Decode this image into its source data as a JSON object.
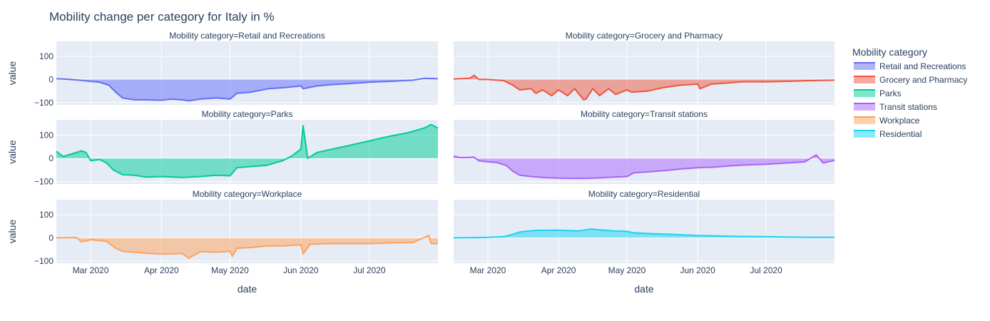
{
  "chart_data": {
    "type": "area",
    "title": "Mobility change per category for Italy in %",
    "xlabel": "date",
    "ylabel": "value",
    "x_range": [
      "2020-02-15",
      "2020-07-31"
    ],
    "y_range": [
      -110,
      165
    ],
    "y_ticks": [
      -100,
      0,
      100
    ],
    "x_ticks": [
      {
        "date": "2020-03-01",
        "label": "Mar 2020"
      },
      {
        "date": "2020-04-01",
        "label": "Apr 2020"
      },
      {
        "date": "2020-05-01",
        "label": "May 2020"
      },
      {
        "date": "2020-06-01",
        "label": "Jun 2020"
      },
      {
        "date": "2020-07-01",
        "label": "Jul 2020"
      }
    ],
    "facet_prefix": "Mobility category=",
    "legend_title": "Mobility category",
    "legend_position": "right",
    "grid": true,
    "series": [
      {
        "name": "Retail and Recreations",
        "color": "#636efa",
        "points": [
          [
            "2020-02-15",
            3
          ],
          [
            "2020-02-20",
            1
          ],
          [
            "2020-02-25",
            -3
          ],
          [
            "2020-03-01",
            -8
          ],
          [
            "2020-03-05",
            -12
          ],
          [
            "2020-03-09",
            -25
          ],
          [
            "2020-03-12",
            -55
          ],
          [
            "2020-03-15",
            -80
          ],
          [
            "2020-03-20",
            -88
          ],
          [
            "2020-03-25",
            -88
          ],
          [
            "2020-04-01",
            -90
          ],
          [
            "2020-04-05",
            -85
          ],
          [
            "2020-04-10",
            -88
          ],
          [
            "2020-04-13",
            -92
          ],
          [
            "2020-04-18",
            -85
          ],
          [
            "2020-04-25",
            -80
          ],
          [
            "2020-05-01",
            -85
          ],
          [
            "2020-05-04",
            -60
          ],
          [
            "2020-05-10",
            -55
          ],
          [
            "2020-05-18",
            -40
          ],
          [
            "2020-05-25",
            -35
          ],
          [
            "2020-06-01",
            -28
          ],
          [
            "2020-06-02",
            -40
          ],
          [
            "2020-06-08",
            -28
          ],
          [
            "2020-06-15",
            -22
          ],
          [
            "2020-06-22",
            -18
          ],
          [
            "2020-07-01",
            -12
          ],
          [
            "2020-07-10",
            -8
          ],
          [
            "2020-07-20",
            -3
          ],
          [
            "2020-07-25",
            5
          ],
          [
            "2020-07-31",
            3
          ]
        ]
      },
      {
        "name": "Grocery and Pharmacy",
        "color": "#EF553B",
        "points": [
          [
            "2020-02-15",
            2
          ],
          [
            "2020-02-22",
            5
          ],
          [
            "2020-02-24",
            18
          ],
          [
            "2020-02-26",
            0
          ],
          [
            "2020-03-01",
            0
          ],
          [
            "2020-03-08",
            -5
          ],
          [
            "2020-03-12",
            -25
          ],
          [
            "2020-03-15",
            -45
          ],
          [
            "2020-03-20",
            -40
          ],
          [
            "2020-03-22",
            -60
          ],
          [
            "2020-03-25",
            -45
          ],
          [
            "2020-03-29",
            -70
          ],
          [
            "2020-04-01",
            -45
          ],
          [
            "2020-04-05",
            -70
          ],
          [
            "2020-04-08",
            -40
          ],
          [
            "2020-04-12",
            -88
          ],
          [
            "2020-04-13",
            -85
          ],
          [
            "2020-04-16",
            -40
          ],
          [
            "2020-04-19",
            -70
          ],
          [
            "2020-04-23",
            -40
          ],
          [
            "2020-04-26",
            -65
          ],
          [
            "2020-05-01",
            -45
          ],
          [
            "2020-05-03",
            -55
          ],
          [
            "2020-05-10",
            -50
          ],
          [
            "2020-05-17",
            -35
          ],
          [
            "2020-05-24",
            -25
          ],
          [
            "2020-06-01",
            -20
          ],
          [
            "2020-06-02",
            -40
          ],
          [
            "2020-06-07",
            -20
          ],
          [
            "2020-06-14",
            -15
          ],
          [
            "2020-06-21",
            -10
          ],
          [
            "2020-07-01",
            -10
          ],
          [
            "2020-07-10",
            -8
          ],
          [
            "2020-07-20",
            -5
          ],
          [
            "2020-07-31",
            -3
          ]
        ]
      },
      {
        "name": "Parks",
        "color": "#00cc96",
        "points": [
          [
            "2020-02-15",
            30
          ],
          [
            "2020-02-18",
            8
          ],
          [
            "2020-02-22",
            20
          ],
          [
            "2020-02-26",
            32
          ],
          [
            "2020-02-28",
            25
          ],
          [
            "2020-03-01",
            -10
          ],
          [
            "2020-03-05",
            -5
          ],
          [
            "2020-03-08",
            -20
          ],
          [
            "2020-03-11",
            -50
          ],
          [
            "2020-03-15",
            -70
          ],
          [
            "2020-03-20",
            -72
          ],
          [
            "2020-03-25",
            -80
          ],
          [
            "2020-04-01",
            -78
          ],
          [
            "2020-04-10",
            -82
          ],
          [
            "2020-04-18",
            -78
          ],
          [
            "2020-04-25",
            -72
          ],
          [
            "2020-05-01",
            -75
          ],
          [
            "2020-05-04",
            -40
          ],
          [
            "2020-05-10",
            -35
          ],
          [
            "2020-05-17",
            -30
          ],
          [
            "2020-05-24",
            -10
          ],
          [
            "2020-05-28",
            10
          ],
          [
            "2020-06-01",
            40
          ],
          [
            "2020-06-02",
            140
          ],
          [
            "2020-06-04",
            0
          ],
          [
            "2020-06-08",
            25
          ],
          [
            "2020-06-15",
            40
          ],
          [
            "2020-06-22",
            55
          ],
          [
            "2020-07-01",
            75
          ],
          [
            "2020-07-10",
            95
          ],
          [
            "2020-07-18",
            110
          ],
          [
            "2020-07-25",
            130
          ],
          [
            "2020-07-28",
            145
          ],
          [
            "2020-07-31",
            130
          ]
        ]
      },
      {
        "name": "Transit stations",
        "color": "#ab63fa",
        "points": [
          [
            "2020-02-15",
            10
          ],
          [
            "2020-02-18",
            3
          ],
          [
            "2020-02-24",
            5
          ],
          [
            "2020-02-26",
            -10
          ],
          [
            "2020-03-01",
            -15
          ],
          [
            "2020-03-05",
            -18
          ],
          [
            "2020-03-09",
            -30
          ],
          [
            "2020-03-12",
            -55
          ],
          [
            "2020-03-15",
            -72
          ],
          [
            "2020-03-20",
            -78
          ],
          [
            "2020-03-25",
            -82
          ],
          [
            "2020-04-01",
            -85
          ],
          [
            "2020-04-10",
            -86
          ],
          [
            "2020-04-18",
            -84
          ],
          [
            "2020-04-25",
            -80
          ],
          [
            "2020-05-01",
            -78
          ],
          [
            "2020-05-04",
            -62
          ],
          [
            "2020-05-10",
            -58
          ],
          [
            "2020-05-18",
            -52
          ],
          [
            "2020-05-25",
            -45
          ],
          [
            "2020-06-01",
            -40
          ],
          [
            "2020-06-08",
            -38
          ],
          [
            "2020-06-15",
            -32
          ],
          [
            "2020-06-22",
            -28
          ],
          [
            "2020-07-01",
            -25
          ],
          [
            "2020-07-10",
            -20
          ],
          [
            "2020-07-18",
            -15
          ],
          [
            "2020-07-23",
            15
          ],
          [
            "2020-07-26",
            -20
          ],
          [
            "2020-07-31",
            -8
          ]
        ]
      },
      {
        "name": "Workplace",
        "color": "#FFA15A",
        "points": [
          [
            "2020-02-15",
            0
          ],
          [
            "2020-02-24",
            1
          ],
          [
            "2020-02-26",
            -18
          ],
          [
            "2020-03-01",
            -8
          ],
          [
            "2020-03-08",
            -15
          ],
          [
            "2020-03-12",
            -45
          ],
          [
            "2020-03-15",
            -58
          ],
          [
            "2020-03-20",
            -62
          ],
          [
            "2020-03-25",
            -66
          ],
          [
            "2020-04-01",
            -70
          ],
          [
            "2020-04-10",
            -68
          ],
          [
            "2020-04-13",
            -88
          ],
          [
            "2020-04-18",
            -60
          ],
          [
            "2020-04-25",
            -62
          ],
          [
            "2020-05-01",
            -58
          ],
          [
            "2020-05-02",
            -80
          ],
          [
            "2020-05-04",
            -45
          ],
          [
            "2020-05-10",
            -42
          ],
          [
            "2020-05-17",
            -35
          ],
          [
            "2020-05-24",
            -35
          ],
          [
            "2020-06-01",
            -30
          ],
          [
            "2020-06-02",
            -70
          ],
          [
            "2020-06-05",
            -28
          ],
          [
            "2020-06-12",
            -25
          ],
          [
            "2020-06-20",
            -25
          ],
          [
            "2020-07-01",
            -25
          ],
          [
            "2020-07-10",
            -22
          ],
          [
            "2020-07-20",
            -20
          ],
          [
            "2020-07-27",
            10
          ],
          [
            "2020-07-28",
            -25
          ],
          [
            "2020-07-31",
            -25
          ]
        ]
      },
      {
        "name": "Residential",
        "color": "#19d3f3",
        "points": [
          [
            "2020-02-15",
            0
          ],
          [
            "2020-02-25",
            1
          ],
          [
            "2020-03-01",
            2
          ],
          [
            "2020-03-08",
            5
          ],
          [
            "2020-03-12",
            15
          ],
          [
            "2020-03-15",
            25
          ],
          [
            "2020-03-22",
            32
          ],
          [
            "2020-04-01",
            33
          ],
          [
            "2020-04-10",
            30
          ],
          [
            "2020-04-15",
            38
          ],
          [
            "2020-04-25",
            30
          ],
          [
            "2020-05-01",
            28
          ],
          [
            "2020-05-04",
            22
          ],
          [
            "2020-05-12",
            18
          ],
          [
            "2020-05-20",
            15
          ],
          [
            "2020-06-01",
            10
          ],
          [
            "2020-06-10",
            8
          ],
          [
            "2020-06-20",
            6
          ],
          [
            "2020-07-01",
            5
          ],
          [
            "2020-07-10",
            3
          ],
          [
            "2020-07-20",
            2
          ],
          [
            "2020-07-31",
            2
          ]
        ]
      }
    ]
  }
}
